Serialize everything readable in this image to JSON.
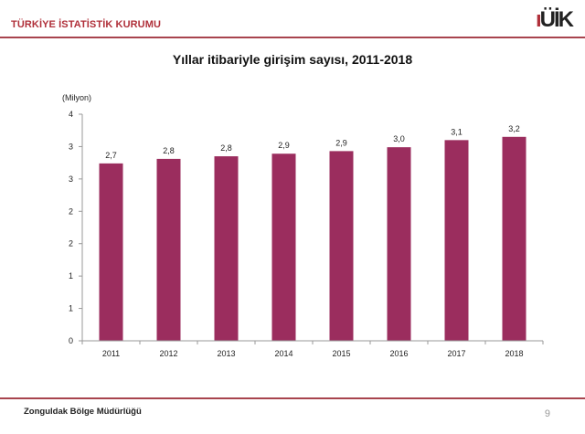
{
  "header": {
    "org_name": "TÜRKİYE İSTATİSTİK KURUMU",
    "logo_text": "TÜİK"
  },
  "footer": {
    "office": "Zonguldak Bölge Müdürlüğü",
    "page_number": "9"
  },
  "colors": {
    "bar": "#9b2d5e",
    "accent": "#a8444e"
  },
  "chart_data": {
    "type": "bar",
    "title": "Yıllar itibariyle girişim sayısı, 2011-2018",
    "ylabel": "(Milyon)",
    "xlabel": "",
    "categories": [
      "2011",
      "2012",
      "2013",
      "2014",
      "2015",
      "2016",
      "2017",
      "2018"
    ],
    "values": [
      2.74,
      2.81,
      2.85,
      2.89,
      2.93,
      2.99,
      3.1,
      3.15
    ],
    "data_labels": [
      "2,7",
      "2,8",
      "2,8",
      "2,9",
      "2,9",
      "3,0",
      "3,1",
      "3,2"
    ],
    "ylim": [
      0,
      3.5
    ],
    "yticks": [
      0,
      0.5,
      1,
      1.5,
      2,
      2.5,
      3,
      3.5
    ],
    "ytick_labels": [
      "0",
      "1",
      "1",
      "2",
      "2",
      "3",
      "3",
      "4"
    ],
    "grid": false,
    "legend": "none"
  }
}
